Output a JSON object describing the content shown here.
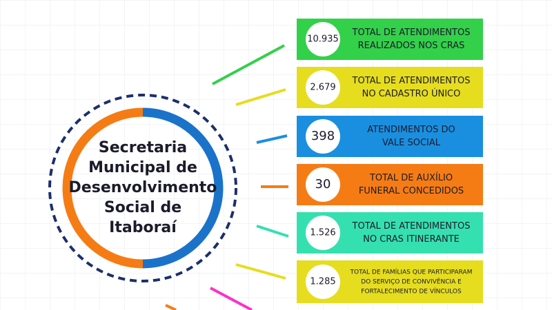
{
  "center": {
    "lines": [
      "Secretaria",
      "Municipal de",
      "Desenvolvimento",
      "Social de",
      "Itaboraí"
    ]
  },
  "items": [
    {
      "number": "10.935",
      "lines": [
        "TOTAL DE ATENDIMENTOS",
        "REALIZADOS NOS CRAS"
      ]
    },
    {
      "number": "2.679",
      "lines": [
        "TOTAL DE ATENDIMENTOS",
        "NO CADASTRO ÚNICO"
      ]
    },
    {
      "number": "398",
      "lines": [
        "ATENDIMENTOS DO",
        "VALE SOCIAL"
      ]
    },
    {
      "number": "30",
      "lines": [
        "TOTAL DE AUXÍLIO",
        "FUNERAL CONCEDIDOS"
      ]
    },
    {
      "number": "1.526",
      "lines": [
        "TOTAL DE ATENDIMENTOS",
        "NO CRAS ITINERANTE"
      ]
    },
    {
      "number": "1.285",
      "lines": [
        "TOTAL DE FAMÍLIAS QUE PARTICIPARAM",
        "DO SERVIÇO DE CONVIVÊNCIA E",
        "FORTALECIMENTO DE VÍNCULOS"
      ]
    }
  ]
}
